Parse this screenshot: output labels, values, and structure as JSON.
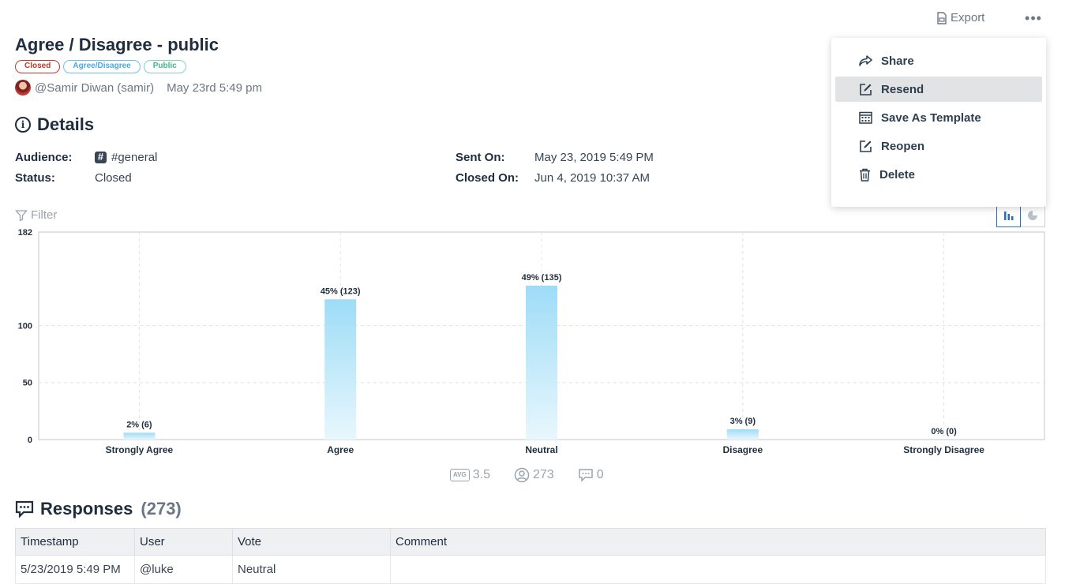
{
  "toolbar": {
    "export_label": "Export",
    "more_label": "•••"
  },
  "survey": {
    "title": "Agree / Disagree - public",
    "tags": {
      "status": "Closed",
      "type": "Agree/Disagree",
      "visibility": "Public"
    },
    "author": "@Samir Diwan (samir)",
    "created": "May 23rd 5:49 pm"
  },
  "details": {
    "heading": "Details",
    "audience_label": "Audience:",
    "audience_value": "#general",
    "status_label": "Status:",
    "status_value": "Closed",
    "sent_label": "Sent On:",
    "sent_value": "May 23, 2019 5:49 PM",
    "closed_label": "Closed On:",
    "closed_value": "Jun 4, 2019 10:37 AM"
  },
  "filter": {
    "label": "Filter"
  },
  "chart_data": {
    "type": "bar",
    "categories": [
      "Strongly Agree",
      "Agree",
      "Neutral",
      "Disagree",
      "Strongly Disagree"
    ],
    "values": [
      6,
      123,
      135,
      9,
      0
    ],
    "data_labels": [
      "2% (6)",
      "45% (123)",
      "49% (135)",
      "3% (9)",
      "0% (0)"
    ],
    "yticks": [
      0,
      50,
      100,
      182
    ],
    "ylim": [
      0,
      182
    ],
    "grid": true,
    "bar_color": "#9edcf6"
  },
  "stats": {
    "avg_badge": "AVG",
    "avg": "3.5",
    "responses": "273",
    "comments": "0"
  },
  "responses": {
    "heading": "Responses",
    "count": "(273)",
    "columns": [
      "Timestamp",
      "User",
      "Vote",
      "Comment"
    ],
    "rows": [
      [
        "5/23/2019 5:49 PM",
        "@luke",
        "Neutral",
        ""
      ]
    ]
  },
  "menu": {
    "items": [
      {
        "label": "Share",
        "icon": "share-icon"
      },
      {
        "label": "Resend",
        "icon": "edit-icon"
      },
      {
        "label": "Save As Template",
        "icon": "calendar-icon"
      },
      {
        "label": "Reopen",
        "icon": "edit-icon"
      },
      {
        "label": "Delete",
        "icon": "trash-icon"
      }
    ]
  },
  "colors": {
    "accent": "#2b6fb3",
    "text": "#1f2d3d",
    "muted": "#6b7685",
    "closed": "#c0392b",
    "public": "#3fb58f"
  }
}
